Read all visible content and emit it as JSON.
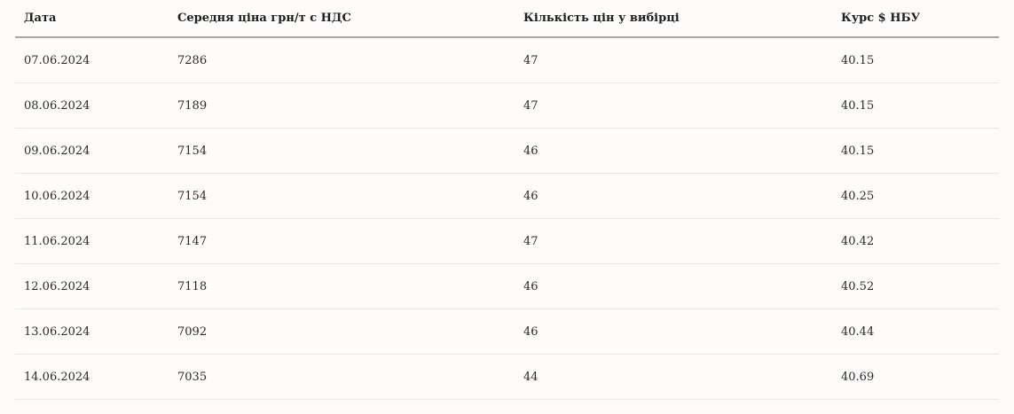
{
  "table": {
    "headers": [
      "Дата",
      "Середня ціна грн/т с НДС",
      "Кількість цін у вибірці",
      "Курс $ НБУ"
    ],
    "rows": [
      [
        "07.06.2024",
        "7286",
        "47",
        "40.15"
      ],
      [
        "08.06.2024",
        "7189",
        "47",
        "40.15"
      ],
      [
        "09.06.2024",
        "7154",
        "46",
        "40.15"
      ],
      [
        "10.06.2024",
        "7154",
        "46",
        "40.25"
      ],
      [
        "11.06.2024",
        "7147",
        "47",
        "40.42"
      ],
      [
        "12.06.2024",
        "7118",
        "46",
        "40.52"
      ],
      [
        "13.06.2024",
        "7092",
        "46",
        "40.44"
      ],
      [
        "14.06.2024",
        "7035",
        "44",
        "40.69"
      ]
    ]
  }
}
